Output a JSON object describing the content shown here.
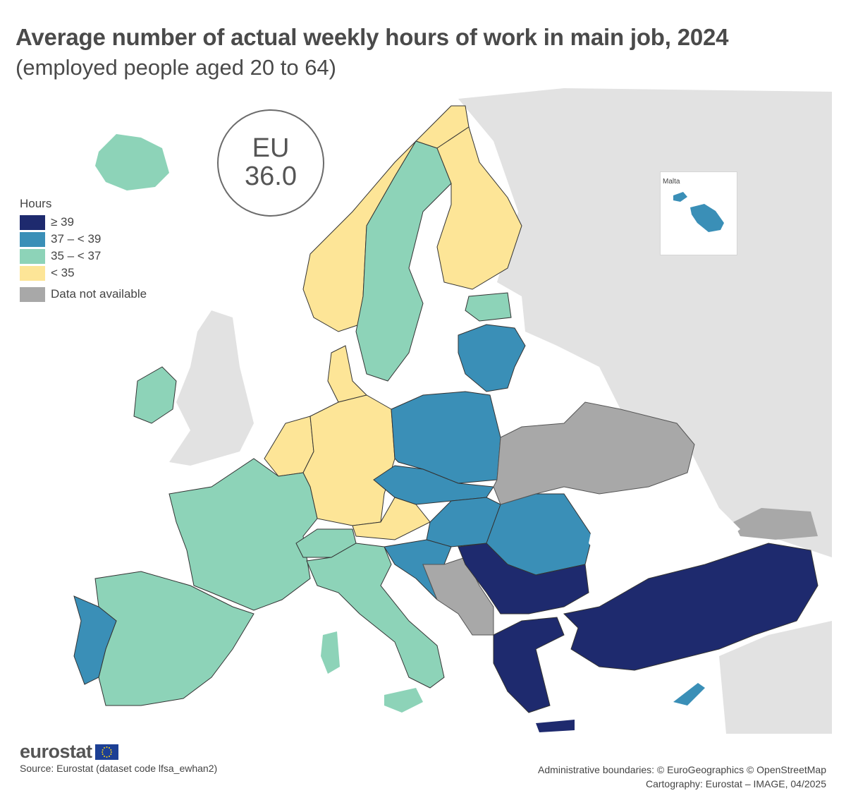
{
  "title": "Average number of actual weekly hours of work in main job, 2024",
  "subtitle": "(employed people aged 20 to 64)",
  "eu_label": "EU",
  "eu_value": "36.0",
  "legend": {
    "title": "Hours",
    "classes": [
      {
        "label": "≥ 39",
        "color": "#1e2a6e"
      },
      {
        "label": "37 – < 39",
        "color": "#3a8fb7"
      },
      {
        "label": "35 – < 37",
        "color": "#8dd3b8"
      },
      {
        "label": "< 35",
        "color": "#fde597"
      }
    ],
    "not_available": {
      "label": "Data not available",
      "color": "#a8a8a8"
    }
  },
  "non_eu_color": "#e2e2e2",
  "inset": {
    "label": "Malta",
    "color": "#3a8fb7"
  },
  "footer": {
    "logo_text": "eurostat",
    "source": "Source: Eurostat (dataset code lfsa_ewhan2)",
    "boundaries": "Administrative boundaries: © EuroGeographics © OpenStreetMap",
    "cartography": "Cartography: Eurostat – IMAGE, 04/2025"
  }
}
